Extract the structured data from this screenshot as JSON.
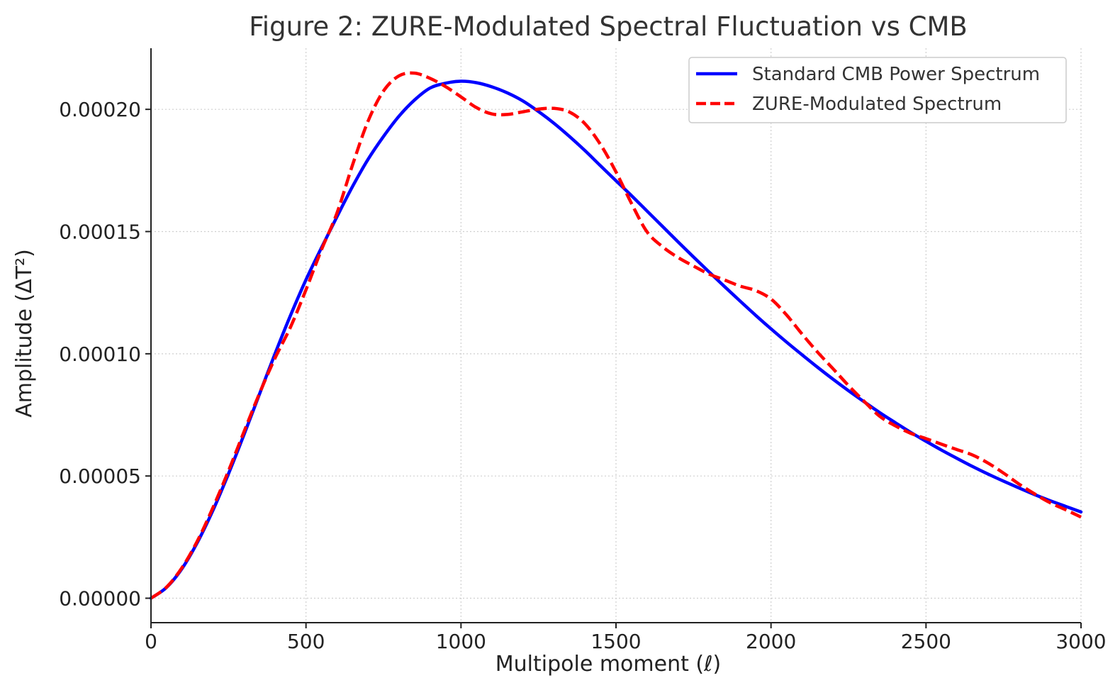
{
  "chart_data": {
    "type": "line",
    "title": "Figure 2: ZURE-Modulated Spectral Fluctuation vs CMB",
    "xlabel": "Multipole moment (ℓ)",
    "ylabel": "Amplitude (ΔT²)",
    "xlim": [
      0,
      3000
    ],
    "ylim": [
      -1e-05,
      0.000225
    ],
    "xticks": [
      0,
      500,
      1000,
      1500,
      2000,
      2500,
      3000
    ],
    "xtick_labels": [
      "0",
      "500",
      "1000",
      "1500",
      "2000",
      "2500",
      "3000"
    ],
    "yticks": [
      0,
      5e-05,
      0.0001,
      0.00015,
      0.0002
    ],
    "ytick_labels": [
      "0.00000",
      "0.00005",
      "0.00010",
      "0.00015",
      "0.00020"
    ],
    "grid": true,
    "legend_position": "top-right",
    "series": [
      {
        "name": "Standard CMB Power Spectrum",
        "color": "#0000ff",
        "style": "solid",
        "x": [
          0,
          50,
          100,
          150,
          200,
          250,
          300,
          350,
          400,
          450,
          500,
          550,
          600,
          650,
          700,
          750,
          800,
          850,
          900,
          950,
          1000,
          1050,
          1100,
          1150,
          1200,
          1250,
          1300,
          1350,
          1400,
          1450,
          1500,
          1550,
          1600,
          1650,
          1700,
          1750,
          1800,
          1850,
          1900,
          1950,
          2000,
          2050,
          2100,
          2150,
          2200,
          2250,
          2300,
          2350,
          2400,
          2450,
          2500,
          2550,
          2600,
          2650,
          2700,
          2750,
          2800,
          2850,
          2900,
          2950,
          3000
        ],
        "y": [
          0.0,
          4.4e-06,
          1.21e-05,
          2.29e-05,
          3.6e-05,
          5.09e-05,
          6.69e-05,
          8.35e-05,
          0.0001,
          0.0001157,
          0.0001303,
          0.0001434,
          0.0001561,
          0.0001684,
          0.0001795,
          0.0001889,
          0.0001972,
          0.0002038,
          0.0002087,
          0.0002107,
          0.0002115,
          0.0002109,
          0.0002092,
          0.0002067,
          0.0002034,
          0.0001991,
          0.0001943,
          0.0001889,
          0.0001831,
          0.0001769,
          0.0001708,
          0.0001647,
          0.0001584,
          0.0001521,
          0.0001458,
          0.0001396,
          0.0001335,
          0.0001275,
          0.0001216,
          0.0001158,
          0.0001102,
          0.0001048,
          9.96e-05,
          9.45e-05,
          8.96e-05,
          8.49e-05,
          8.04e-05,
          7.6e-05,
          7.19e-05,
          6.79e-05,
          6.42e-05,
          6.06e-05,
          5.72e-05,
          5.39e-05,
          5.08e-05,
          4.79e-05,
          4.51e-05,
          4.24e-05,
          3.99e-05,
          3.76e-05,
          3.53e-05
        ]
      },
      {
        "name": "ZURE-Modulated Spectrum",
        "color": "#ff0000",
        "style": "dashed",
        "x": [
          0,
          50,
          100,
          150,
          200,
          250,
          300,
          350,
          400,
          450,
          500,
          550,
          600,
          650,
          700,
          750,
          800,
          850,
          900,
          950,
          1000,
          1050,
          1100,
          1150,
          1200,
          1250,
          1300,
          1350,
          1400,
          1450,
          1500,
          1550,
          1600,
          1650,
          1700,
          1750,
          1800,
          1850,
          1900,
          1950,
          2000,
          2050,
          2100,
          2150,
          2200,
          2250,
          2300,
          2350,
          2400,
          2450,
          2500,
          2550,
          2600,
          2650,
          2700,
          2750,
          2800,
          2850,
          2900,
          2950,
          3000
        ],
        "y": [
          0.0,
          4.5e-06,
          1.25e-05,
          2.35e-05,
          3.71e-05,
          5.21e-05,
          6.81e-05,
          8.38e-05,
          9.82e-05,
          0.0001109,
          0.0001262,
          0.0001426,
          0.0001576,
          0.0001772,
          0.0001951,
          0.0002075,
          0.0002137,
          0.0002148,
          0.0002127,
          0.0002093,
          0.0002051,
          0.0002007,
          0.0001981,
          0.0001979,
          0.000199,
          0.0002001,
          0.0002004,
          0.0001989,
          0.0001941,
          0.0001856,
          0.0001744,
          0.0001615,
          0.0001499,
          0.0001438,
          0.0001394,
          0.0001359,
          0.0001326,
          0.0001302,
          0.0001277,
          0.0001259,
          0.0001224,
          0.0001159,
          0.0001081,
          0.0001007,
          9.39e-05,
          8.7e-05,
          8.06e-05,
          7.45e-05,
          7.06e-05,
          6.75e-05,
          6.53e-05,
          6.3e-05,
          6.08e-05,
          5.86e-05,
          5.53e-05,
          5.12e-05,
          4.67e-05,
          4.27e-05,
          3.91e-05,
          3.62e-05,
          3.32e-05
        ]
      }
    ]
  }
}
